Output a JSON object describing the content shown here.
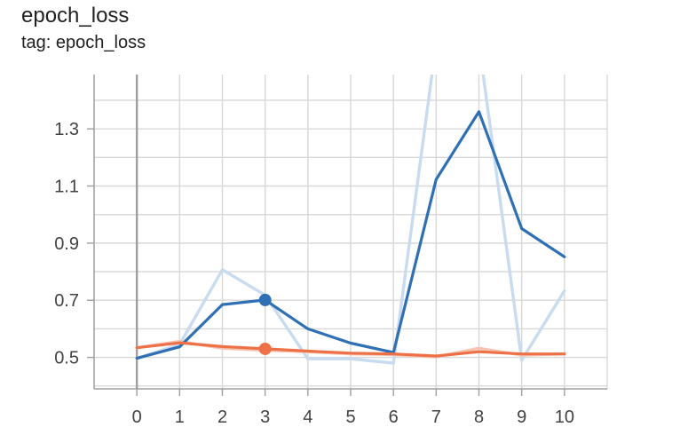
{
  "card": {
    "title": "epoch_loss",
    "tag": "tag: epoch_loss"
  },
  "colors": {
    "series_blue": "#2f6fb3",
    "series_blue_raw": "#c9dbef",
    "series_orange": "#ee7046",
    "series_orange_raw": "#f6c5b1",
    "grid": "#d8d8d8",
    "axis": "#9e9e9e",
    "zero_line": "#9e9e9e"
  },
  "chart_data": {
    "type": "line",
    "x": [
      0,
      1,
      2,
      3,
      4,
      5,
      6,
      7,
      8,
      9,
      10
    ],
    "xlim": [
      -1,
      11
    ],
    "ylim": [
      0.39,
      1.49
    ],
    "xticks": [
      "0",
      "1",
      "2",
      "3",
      "4",
      "5",
      "6",
      "7",
      "8",
      "9",
      "10"
    ],
    "yticks": [
      "0.5",
      "0.7",
      "0.9",
      "1.1",
      "1.3"
    ],
    "ytick_values": [
      0.5,
      0.7,
      0.9,
      1.1,
      1.3
    ],
    "grid": true,
    "hover_x": 3,
    "series": [
      {
        "color": "#2f6fb3",
        "smoothed": true,
        "values": [
          0.497,
          0.537,
          0.685,
          0.701,
          0.6,
          0.55,
          0.517,
          1.123,
          1.36,
          0.951,
          0.852
        ]
      },
      {
        "color": "#c9dbef",
        "smoothed": false,
        "values": [
          0.497,
          0.545,
          0.807,
          0.718,
          0.495,
          0.495,
          0.48,
          1.6,
          1.6,
          0.49,
          0.733
        ]
      },
      {
        "color": "#ee7046",
        "smoothed": true,
        "values": [
          0.534,
          0.551,
          0.538,
          0.53,
          0.522,
          0.515,
          0.512,
          0.505,
          0.52,
          0.512,
          0.512
        ]
      },
      {
        "color": "#f6c5b1",
        "smoothed": false,
        "values": [
          0.534,
          0.556,
          0.532,
          0.525,
          0.52,
          0.512,
          0.51,
          0.502,
          0.532,
          0.508,
          0.512
        ]
      }
    ]
  }
}
